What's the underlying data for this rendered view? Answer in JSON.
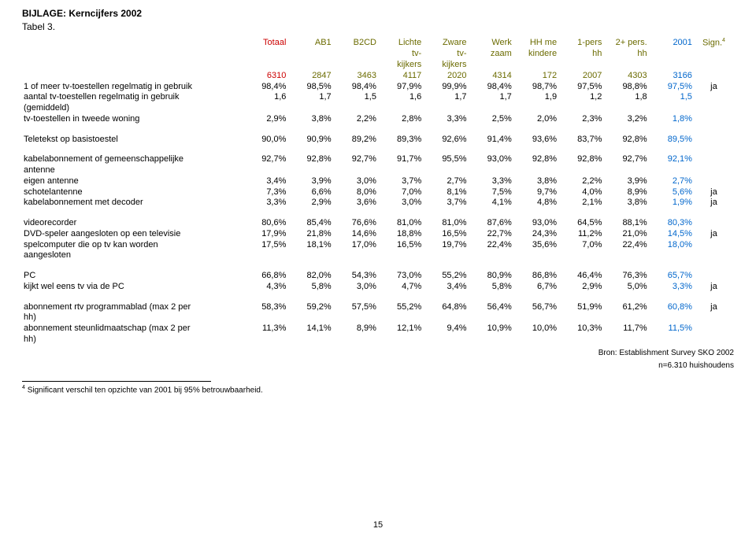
{
  "title": "BIJLAGE: Kerncijfers 2002",
  "subtitle": "Tabel 3.",
  "pagenum": "15",
  "source1": "Bron: Establishment Survey SKO 2002",
  "source2": "n=6.310 huishoudens",
  "footnote": "Significant verschil ten opzichte van 2001 bij 95% betrouwbaarheid.",
  "footnote_marker": "4",
  "header": {
    "row1": [
      "",
      "Totaal",
      "AB1",
      "B2CD",
      "Lichte",
      "Zware",
      "Werk",
      "HH me",
      "1-pers",
      "2+ pers.",
      "2001",
      "Sign."
    ],
    "row2": [
      "",
      "",
      "",
      "",
      "tv-",
      "tv-",
      "zaam",
      "kindere",
      "hh",
      "hh",
      "",
      ""
    ],
    "row3": [
      "",
      "",
      "",
      "",
      "kijkers",
      "kijkers",
      "",
      "",
      "",
      "",
      "",
      ""
    ],
    "row4": [
      "",
      "6310",
      "2847",
      "3463",
      "4117",
      "2020",
      "4314",
      "172",
      "2007",
      "4303",
      "3166",
      ""
    ],
    "sign_sup": "4"
  },
  "groups": [
    {
      "rows": [
        {
          "label": "1 of meer tv-toestellen regelmatig in gebruik",
          "v": [
            "98,4%",
            "98,5%",
            "98,4%",
            "97,9%",
            "99,9%",
            "98,4%",
            "98,7%",
            "97,5%",
            "98,8%",
            "97,5%"
          ],
          "sign": "ja"
        },
        {
          "label": "aantal tv-toestellen regelmatig in gebruik",
          "v": [
            "1,6",
            "1,7",
            "1,5",
            "1,6",
            "1,7",
            "1,7",
            "1,9",
            "1,2",
            "1,8",
            "1,5"
          ],
          "sign": ""
        },
        {
          "label": "(gemiddeld)",
          "v": [
            "",
            "",
            "",
            "",
            "",
            "",
            "",
            "",
            "",
            ""
          ],
          "sign": ""
        },
        {
          "label": "tv-toestellen in tweede woning",
          "v": [
            "2,9%",
            "3,8%",
            "2,2%",
            "2,8%",
            "3,3%",
            "2,5%",
            "2,0%",
            "2,3%",
            "3,2%",
            "1,8%"
          ],
          "sign": ""
        }
      ]
    },
    {
      "rows": [
        {
          "label": "Teletekst op basistoestel",
          "v": [
            "90,0%",
            "90,9%",
            "89,2%",
            "89,3%",
            "92,6%",
            "91,4%",
            "93,6%",
            "83,7%",
            "92,8%",
            "89,5%"
          ],
          "sign": ""
        }
      ]
    },
    {
      "rows": [
        {
          "label": "kabelabonnement of gemeenschappelijke",
          "v": [
            "92,7%",
            "92,8%",
            "92,7%",
            "91,7%",
            "95,5%",
            "93,0%",
            "92,8%",
            "92,8%",
            "92,7%",
            "92,1%"
          ],
          "sign": ""
        },
        {
          "label": "antenne",
          "v": [
            "",
            "",
            "",
            "",
            "",
            "",
            "",
            "",
            "",
            ""
          ],
          "sign": ""
        },
        {
          "label": "eigen antenne",
          "v": [
            "3,4%",
            "3,9%",
            "3,0%",
            "3,7%",
            "2,7%",
            "3,3%",
            "3,8%",
            "2,2%",
            "3,9%",
            "2,7%"
          ],
          "sign": ""
        },
        {
          "label": "schotelantenne",
          "v": [
            "7,3%",
            "6,6%",
            "8,0%",
            "7,0%",
            "8,1%",
            "7,5%",
            "9,7%",
            "4,0%",
            "8,9%",
            "5,6%"
          ],
          "sign": "ja"
        },
        {
          "label": "kabelabonnement met decoder",
          "v": [
            "3,3%",
            "2,9%",
            "3,6%",
            "3,0%",
            "3,7%",
            "4,1%",
            "4,8%",
            "2,1%",
            "3,8%",
            "1,9%"
          ],
          "sign": "ja"
        }
      ]
    },
    {
      "rows": [
        {
          "label": "videorecorder",
          "v": [
            "80,6%",
            "85,4%",
            "76,6%",
            "81,0%",
            "81,0%",
            "87,6%",
            "93,0%",
            "64,5%",
            "88,1%",
            "80,3%"
          ],
          "sign": ""
        },
        {
          "label": "DVD-speler aangesloten op een televisie",
          "v": [
            "17,9%",
            "21,8%",
            "14,6%",
            "18,8%",
            "16,5%",
            "22,7%",
            "24,3%",
            "11,2%",
            "21,0%",
            "14,5%"
          ],
          "sign": "ja"
        },
        {
          "label": "spelcomputer die op tv kan worden",
          "v": [
            "17,5%",
            "18,1%",
            "17,0%",
            "16,5%",
            "19,7%",
            "22,4%",
            "35,6%",
            "7,0%",
            "22,4%",
            "18,0%"
          ],
          "sign": ""
        },
        {
          "label": "aangesloten",
          "v": [
            "",
            "",
            "",
            "",
            "",
            "",
            "",
            "",
            "",
            ""
          ],
          "sign": ""
        }
      ]
    },
    {
      "rows": [
        {
          "label": "PC",
          "v": [
            "66,8%",
            "82,0%",
            "54,3%",
            "73,0%",
            "55,2%",
            "80,9%",
            "86,8%",
            "46,4%",
            "76,3%",
            "65,7%"
          ],
          "sign": ""
        },
        {
          "label": "kijkt wel eens tv via de PC",
          "v": [
            "4,3%",
            "5,8%",
            "3,0%",
            "4,7%",
            "3,4%",
            "5,8%",
            "6,7%",
            "2,9%",
            "5,0%",
            "3,3%"
          ],
          "sign": "ja"
        }
      ]
    },
    {
      "rows": [
        {
          "label": "abonnement rtv programmablad (max 2 per",
          "v": [
            "58,3%",
            "59,2%",
            "57,5%",
            "55,2%",
            "64,8%",
            "56,4%",
            "56,7%",
            "51,9%",
            "61,2%",
            "60,8%"
          ],
          "sign": "ja"
        },
        {
          "label": "hh)",
          "v": [
            "",
            "",
            "",
            "",
            "",
            "",
            "",
            "",
            "",
            ""
          ],
          "sign": ""
        },
        {
          "label": "abonnement steunlidmaatschap (max 2 per",
          "v": [
            "11,3%",
            "14,1%",
            "8,9%",
            "12,1%",
            "9,4%",
            "10,9%",
            "10,0%",
            "10,3%",
            "11,7%",
            "11,5%"
          ],
          "sign": ""
        },
        {
          "label": "hh)",
          "v": [
            "",
            "",
            "",
            "",
            "",
            "",
            "",
            "",
            "",
            ""
          ],
          "sign": ""
        }
      ]
    }
  ]
}
